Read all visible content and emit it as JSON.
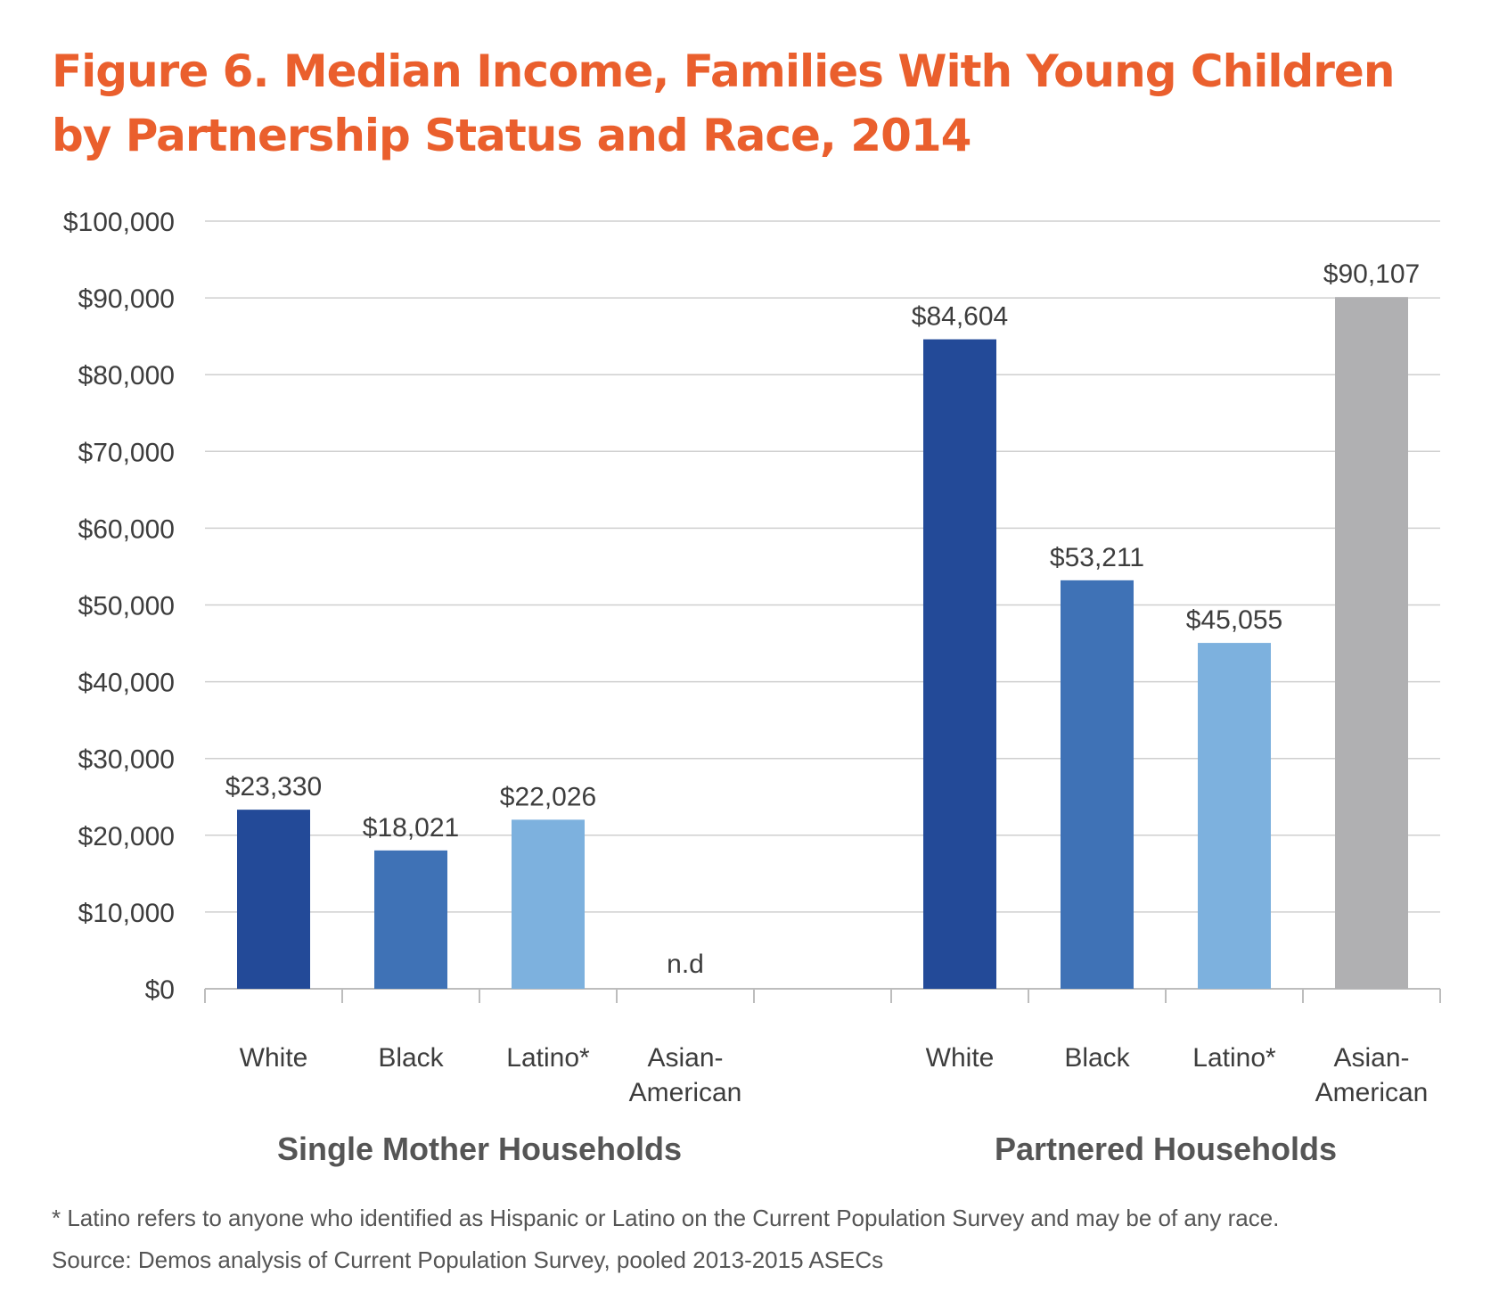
{
  "chart_data": {
    "type": "bar",
    "title": "Figure 6. Median Income, Families With Young Children by Partnership Status and Race, 2014",
    "ylim": [
      0,
      100000
    ],
    "yticks": [
      0,
      10000,
      20000,
      30000,
      40000,
      50000,
      60000,
      70000,
      80000,
      90000,
      100000
    ],
    "ytick_labels": [
      "$0",
      "$10,000",
      "$20,000",
      "$30,000",
      "$40,000",
      "$50,000",
      "$60,000",
      "$70,000",
      "$80,000",
      "$90,000",
      "$100,000"
    ],
    "grid": true,
    "groups": [
      {
        "name": "Single Mother Households",
        "bars": [
          {
            "category": "White",
            "value": 23330,
            "label": "$23,330",
            "color": "#234a98"
          },
          {
            "category": "Black",
            "value": 18021,
            "label": "$18,021",
            "color": "#3f72b6"
          },
          {
            "category": "Latino*",
            "value": 22026,
            "label": "$22,026",
            "color": "#7db1de"
          },
          {
            "category": "Asian-American",
            "value": null,
            "label": "n.d",
            "color": "#b0b0b2"
          }
        ]
      },
      {
        "name": "Partnered Households",
        "bars": [
          {
            "category": "White",
            "value": 84604,
            "label": "$84,604",
            "color": "#234a98"
          },
          {
            "category": "Black",
            "value": 53211,
            "label": "$53,211",
            "color": "#3f72b6"
          },
          {
            "category": "Latino*",
            "value": 45055,
            "label": "$45,055",
            "color": "#7db1de"
          },
          {
            "category": "Asian-American",
            "value": 90107,
            "label": "$90,107",
            "color": "#b0b0b2"
          }
        ]
      }
    ]
  },
  "footnotes": {
    "latino_note": "* Latino refers to anyone who identified as Hispanic or Latino on the Current Population Survey and may be of any race.",
    "source": "Source: Demos analysis of Current Population Survey, pooled 2013-2015 ASECs"
  }
}
